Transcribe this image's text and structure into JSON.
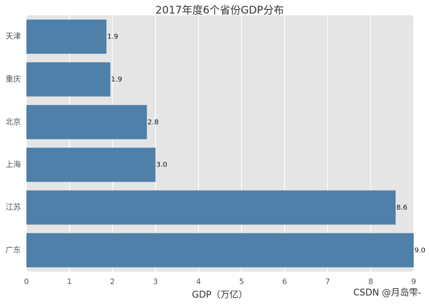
{
  "chart_data": {
    "type": "barh",
    "title": "2017年度6个省份GDP分布",
    "categories": [
      "天津",
      "重庆",
      "北京",
      "上海",
      "江苏",
      "广东"
    ],
    "values": [
      1.86,
      1.95,
      2.8,
      3.0,
      8.58,
      9.0
    ],
    "value_labels": [
      "1.9",
      "1.9",
      "2.8",
      "3.0",
      "8.6",
      "9.0"
    ],
    "color": "#4e80a9",
    "xlabel": "GDP（万亿）",
    "xlim": [
      0,
      9
    ],
    "xticks": [
      0,
      1,
      2,
      3,
      4,
      5,
      6,
      7,
      8,
      9
    ],
    "grid": true,
    "watermark": "CSDN @月岛雫-"
  }
}
